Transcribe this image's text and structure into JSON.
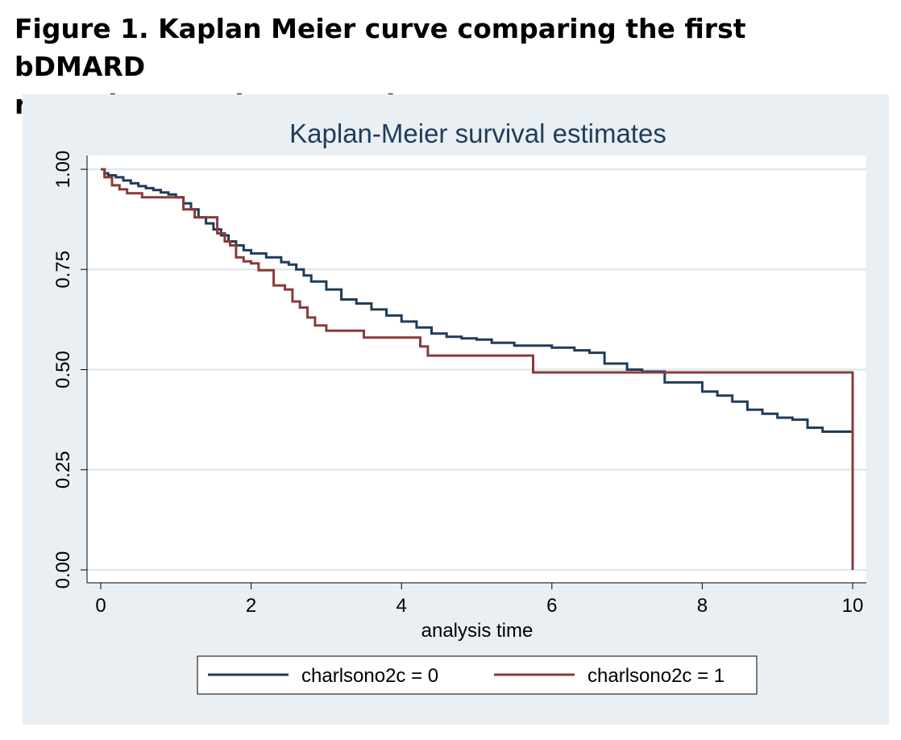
{
  "figure": {
    "caption_line1": "Figure 1. Kaplan Meier curve comparing the first bDMARD",
    "caption_line2": "retention rate between the two groups."
  },
  "colors": {
    "background": "#e9eff2",
    "plot_area": "#ffffff",
    "grid": "#dfe8ec",
    "series0": "#1f3c5a",
    "series1": "#8b3a3a"
  },
  "chart_data": {
    "type": "line",
    "step": true,
    "title": "Kaplan-Meier survival estimates",
    "xlabel": "analysis time",
    "ylabel": "",
    "xlim": [
      0,
      10
    ],
    "ylim": [
      0,
      1
    ],
    "xticks": [
      "0",
      "2",
      "4",
      "6",
      "8",
      "10"
    ],
    "yticks": [
      "0.00",
      "0.25",
      "0.50",
      "0.75",
      "1.00"
    ],
    "grid": true,
    "legend_position": "bottom",
    "series": [
      {
        "name": "charlsono2c = 0",
        "x": [
          0,
          0.05,
          0.1,
          0.2,
          0.3,
          0.4,
          0.5,
          0.6,
          0.7,
          0.8,
          0.9,
          1.0,
          1.1,
          1.2,
          1.3,
          1.4,
          1.5,
          1.6,
          1.7,
          1.8,
          1.9,
          2.0,
          2.2,
          2.4,
          2.5,
          2.6,
          2.7,
          2.8,
          3.0,
          3.2,
          3.4,
          3.6,
          3.8,
          4.0,
          4.2,
          4.4,
          4.6,
          4.8,
          5.0,
          5.2,
          5.5,
          6.0,
          6.3,
          6.5,
          6.7,
          7.0,
          7.2,
          7.5,
          7.7,
          8.0,
          8.2,
          8.4,
          8.6,
          8.8,
          9.0,
          9.2,
          9.4,
          9.6,
          10.0
        ],
        "y": [
          1.0,
          0.99,
          0.985,
          0.98,
          0.972,
          0.965,
          0.958,
          0.953,
          0.948,
          0.942,
          0.937,
          0.93,
          0.915,
          0.9,
          0.88,
          0.865,
          0.85,
          0.835,
          0.82,
          0.81,
          0.798,
          0.79,
          0.78,
          0.768,
          0.762,
          0.75,
          0.735,
          0.72,
          0.7,
          0.675,
          0.665,
          0.65,
          0.635,
          0.62,
          0.605,
          0.59,
          0.582,
          0.578,
          0.575,
          0.567,
          0.56,
          0.555,
          0.548,
          0.542,
          0.515,
          0.5,
          0.495,
          0.468,
          0.468,
          0.445,
          0.435,
          0.42,
          0.4,
          0.39,
          0.38,
          0.375,
          0.355,
          0.345,
          0.34
        ]
      },
      {
        "name": "charlsono2c = 1",
        "x": [
          0,
          0.05,
          0.15,
          0.25,
          0.35,
          0.55,
          1.1,
          1.25,
          1.55,
          1.65,
          1.72,
          1.8,
          1.9,
          2.0,
          2.1,
          2.3,
          2.45,
          2.55,
          2.65,
          2.75,
          2.85,
          3.0,
          3.5,
          4.25,
          4.35,
          5.7,
          5.75,
          10.0,
          10.0
        ],
        "y": [
          1.0,
          0.98,
          0.96,
          0.95,
          0.94,
          0.93,
          0.9,
          0.88,
          0.84,
          0.82,
          0.81,
          0.78,
          0.77,
          0.765,
          0.748,
          0.71,
          0.7,
          0.67,
          0.655,
          0.63,
          0.61,
          0.597,
          0.58,
          0.558,
          0.535,
          0.535,
          0.493,
          0.493,
          0.0
        ]
      }
    ]
  }
}
